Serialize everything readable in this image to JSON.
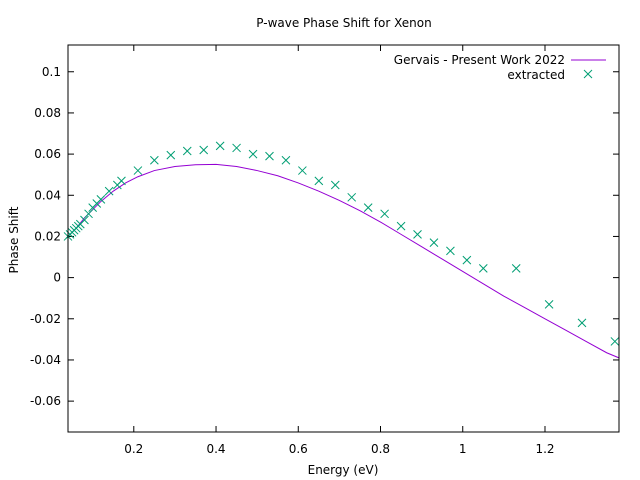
{
  "chart_data": {
    "type": "scatter",
    "title": "P-wave Phase Shift for Xenon",
    "xlabel": "Energy (eV)",
    "ylabel": "Phase Shift",
    "xlim": [
      0.04,
      1.38
    ],
    "ylim": [
      -0.075,
      0.113
    ],
    "x_ticks": [
      0.2,
      0.4,
      0.6,
      0.8,
      1,
      1.2
    ],
    "x_tick_labels": [
      "0.2",
      "0.4",
      "0.6",
      "0.8",
      "1",
      "1.2"
    ],
    "y_ticks": [
      -0.06,
      -0.04,
      -0.02,
      0,
      0.02,
      0.04,
      0.06,
      0.08,
      0.1
    ],
    "y_tick_labels": [
      "-0.06",
      "-0.04",
      "-0.02",
      "0",
      "0.02",
      "0.04",
      "0.06",
      "0.08",
      "0.1"
    ],
    "grid": false,
    "legend_position": "top-right",
    "series": [
      {
        "name": "Gervais - Present Work 2022",
        "type": "line",
        "color": "#9400d3",
        "x": [
          0.04,
          0.06,
          0.08,
          0.1,
          0.12,
          0.15,
          0.18,
          0.21,
          0.25,
          0.3,
          0.35,
          0.4,
          0.45,
          0.5,
          0.55,
          0.6,
          0.65,
          0.7,
          0.75,
          0.8,
          0.85,
          0.9,
          0.95,
          1.0,
          1.05,
          1.1,
          1.15,
          1.2,
          1.25,
          1.3,
          1.35,
          1.38
        ],
        "y": [
          0.02,
          0.024,
          0.029,
          0.033,
          0.037,
          0.042,
          0.046,
          0.049,
          0.052,
          0.054,
          0.0548,
          0.055,
          0.054,
          0.052,
          0.0495,
          0.046,
          0.042,
          0.0375,
          0.0325,
          0.027,
          0.021,
          0.015,
          0.009,
          0.003,
          -0.003,
          -0.009,
          -0.0145,
          -0.02,
          -0.0255,
          -0.031,
          -0.0365,
          -0.039
        ]
      },
      {
        "name": "extracted",
        "type": "scatter",
        "color": "#009e73",
        "x": [
          0.04,
          0.045,
          0.05,
          0.055,
          0.06,
          0.065,
          0.07,
          0.08,
          0.09,
          0.1,
          0.11,
          0.12,
          0.14,
          0.16,
          0.17,
          0.21,
          0.25,
          0.29,
          0.33,
          0.37,
          0.41,
          0.45,
          0.49,
          0.53,
          0.57,
          0.61,
          0.65,
          0.69,
          0.73,
          0.77,
          0.81,
          0.85,
          0.89,
          0.93,
          0.97,
          1.01,
          1.05,
          1.13,
          1.21,
          1.29,
          1.37
        ],
        "y": [
          0.02,
          0.021,
          0.022,
          0.023,
          0.024,
          0.025,
          0.026,
          0.028,
          0.031,
          0.034,
          0.036,
          0.038,
          0.042,
          0.045,
          0.047,
          0.052,
          0.057,
          0.0595,
          0.0615,
          0.062,
          0.064,
          0.063,
          0.06,
          0.059,
          0.057,
          0.052,
          0.047,
          0.045,
          0.039,
          0.034,
          0.031,
          0.025,
          0.021,
          0.017,
          0.013,
          0.0085,
          0.0045,
          0.0045,
          -0.013,
          -0.022,
          -0.031
        ]
      }
    ]
  }
}
